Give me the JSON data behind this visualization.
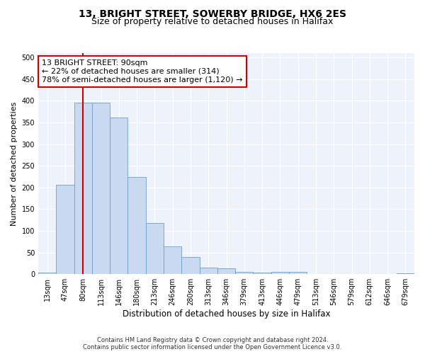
{
  "title1": "13, BRIGHT STREET, SOWERBY BRIDGE, HX6 2ES",
  "title2": "Size of property relative to detached houses in Halifax",
  "xlabel": "Distribution of detached houses by size in Halifax",
  "ylabel": "Number of detached properties",
  "categories": [
    "13sqm",
    "47sqm",
    "80sqm",
    "113sqm",
    "146sqm",
    "180sqm",
    "213sqm",
    "246sqm",
    "280sqm",
    "313sqm",
    "346sqm",
    "379sqm",
    "413sqm",
    "446sqm",
    "479sqm",
    "513sqm",
    "546sqm",
    "579sqm",
    "612sqm",
    "646sqm",
    "679sqm"
  ],
  "values": [
    3,
    206,
    395,
    395,
    362,
    224,
    118,
    64,
    40,
    15,
    14,
    5,
    3,
    5,
    5,
    0,
    0,
    0,
    0,
    0,
    2
  ],
  "bar_color": "#c9d9f0",
  "bar_edge_color": "#6fa0c8",
  "redline_index": 2,
  "redline_color": "#cc0000",
  "annotation_text": "13 BRIGHT STREET: 90sqm\n← 22% of detached houses are smaller (314)\n78% of semi-detached houses are larger (1,120) →",
  "annotation_box_color": "#ffffff",
  "annotation_box_edge_color": "#cc0000",
  "ylim": [
    0,
    510
  ],
  "yticks": [
    0,
    50,
    100,
    150,
    200,
    250,
    300,
    350,
    400,
    450,
    500
  ],
  "background_color": "#eef2fa",
  "footer_line1": "Contains HM Land Registry data © Crown copyright and database right 2024.",
  "footer_line2": "Contains public sector information licensed under the Open Government Licence v3.0.",
  "title1_fontsize": 10,
  "title2_fontsize": 9,
  "xlabel_fontsize": 8.5,
  "ylabel_fontsize": 8,
  "tick_fontsize": 7,
  "annotation_fontsize": 8,
  "footer_fontsize": 6
}
